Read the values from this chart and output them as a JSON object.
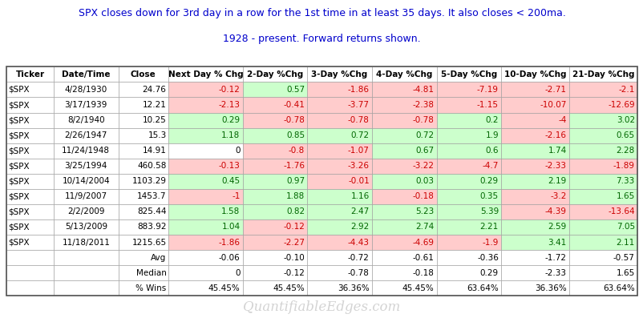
{
  "title_line1": "SPX closes down for 3rd day in a row for the 1st time in at least 35 days. It also closes < 200ma.",
  "title_line2": "1928 - present. Forward returns shown.",
  "title_color": "#0000cc",
  "watermark": "QuantifiableEdges.com",
  "headers": [
    "Ticker",
    "Date/Time",
    "Close",
    "Next Day % Chg",
    "2-Day %Chg",
    "3-Day %Chg",
    "4-Day %Chg",
    "5-Day %Chg",
    "10-Day %Chg",
    "21-Day %Chg"
  ],
  "rows": [
    [
      "$SPX",
      "4/28/1930",
      "24.76",
      "-0.12",
      "0.57",
      "-1.86",
      "-4.81",
      "-7.19",
      "-2.71",
      "-2.1"
    ],
    [
      "$SPX",
      "3/17/1939",
      "12.21",
      "-2.13",
      "-0.41",
      "-3.77",
      "-2.38",
      "-1.15",
      "-10.07",
      "-12.69"
    ],
    [
      "$SPX",
      "8/2/1940",
      "10.25",
      "0.29",
      "-0.78",
      "-0.78",
      "-0.78",
      "0.2",
      "-4",
      "3.02"
    ],
    [
      "$SPX",
      "2/26/1947",
      "15.3",
      "1.18",
      "0.85",
      "0.72",
      "0.72",
      "1.9",
      "-2.16",
      "0.65"
    ],
    [
      "$SPX",
      "11/24/1948",
      "14.91",
      "0",
      "-0.8",
      "-1.07",
      "0.67",
      "0.6",
      "1.74",
      "2.28"
    ],
    [
      "$SPX",
      "3/25/1994",
      "460.58",
      "-0.13",
      "-1.76",
      "-3.26",
      "-3.22",
      "-4.7",
      "-2.33",
      "-1.89"
    ],
    [
      "$SPX",
      "10/14/2004",
      "1103.29",
      "0.45",
      "0.97",
      "-0.01",
      "0.03",
      "0.29",
      "2.19",
      "7.33"
    ],
    [
      "$SPX",
      "11/9/2007",
      "1453.7",
      "-1",
      "1.88",
      "1.16",
      "-0.18",
      "0.35",
      "-3.2",
      "1.65"
    ],
    [
      "$SPX",
      "2/2/2009",
      "825.44",
      "1.58",
      "0.82",
      "2.47",
      "5.23",
      "5.39",
      "-4.39",
      "-13.64"
    ],
    [
      "$SPX",
      "5/13/2009",
      "883.92",
      "1.04",
      "-0.12",
      "2.92",
      "2.74",
      "2.21",
      "2.59",
      "7.05"
    ],
    [
      "$SPX",
      "11/18/2011",
      "1215.65",
      "-1.86",
      "-2.27",
      "-4.43",
      "-4.69",
      "-1.9",
      "3.41",
      "2.11"
    ]
  ],
  "summary_rows": [
    [
      "",
      "",
      "Avg",
      "-0.06",
      "-0.10",
      "-0.72",
      "-0.61",
      "-0.36",
      "-1.72",
      "-0.57"
    ],
    [
      "",
      "",
      "Median",
      "0",
      "-0.12",
      "-0.78",
      "-0.18",
      "0.29",
      "-2.33",
      "1.65"
    ],
    [
      "",
      "",
      "% Wins",
      "45.45%",
      "45.45%",
      "36.36%",
      "45.45%",
      "63.64%",
      "36.36%",
      "63.64%"
    ]
  ],
  "pos_color": "#006600",
  "neg_color": "#cc0000",
  "pos_bg": "#ccffcc",
  "neg_bg": "#ffcccc",
  "neutral_bg": "#ffffff",
  "header_bg": "#ffffff",
  "border_color": "#999999",
  "fig_bg": "#ffffff",
  "title_fontsize": 9.0,
  "cell_fontsize": 7.5
}
